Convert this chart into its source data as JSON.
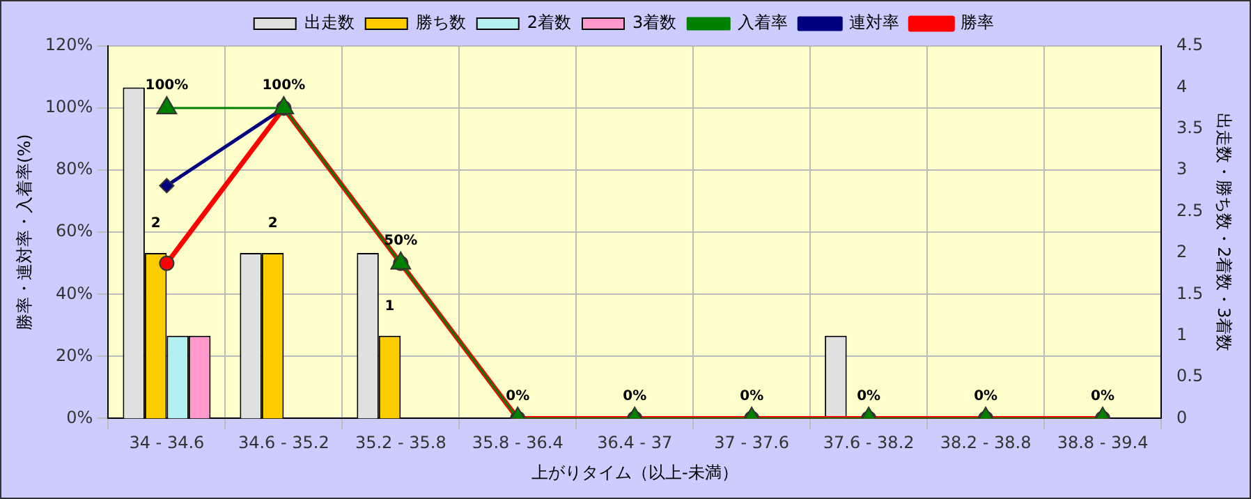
{
  "chart_data": {
    "type": "bar",
    "xlabel": "上がりタイム（以上-未満）",
    "ylabel": "勝率・連対率・入着率(%)",
    "y2label": "出走数・勝ち数・2着数・3着数",
    "categories": [
      "34 - 34.6",
      "34.6 - 35.2",
      "35.2 - 35.8",
      "35.8 - 36.4",
      "36.4 - 37",
      "37 - 37.6",
      "37.6 - 38.2",
      "38.2 - 38.8",
      "38.8 - 39.4"
    ],
    "series": [
      {
        "name": "出走数",
        "axis": "y2",
        "color": "#e0e0e0",
        "values": [
          4,
          2,
          2,
          0,
          0,
          0,
          1,
          0,
          0
        ]
      },
      {
        "name": "勝ち数",
        "axis": "y2",
        "color": "#ffcc00",
        "values": [
          2,
          2,
          1,
          0,
          0,
          0,
          0,
          0,
          0
        ],
        "value_labels": [
          "2",
          "2",
          "1",
          null,
          null,
          null,
          null,
          null,
          null
        ]
      },
      {
        "name": "2着数",
        "axis": "y2",
        "color": "#b3f0f0",
        "values": [
          1,
          0,
          0,
          0,
          0,
          0,
          0,
          0,
          0
        ]
      },
      {
        "name": "3着数",
        "axis": "y2",
        "color": "#ff99cc",
        "values": [
          1,
          0,
          0,
          0,
          0,
          0,
          0,
          0,
          0
        ]
      },
      {
        "name": "入着率",
        "type": "line",
        "color": "#008000",
        "marker": "triangle",
        "values": [
          100,
          100,
          50,
          0,
          0,
          0,
          0,
          0,
          0
        ],
        "value_labels": [
          "100%",
          "100%",
          "50%",
          "0%",
          "0%",
          "0%",
          "0%",
          "0%",
          "0%"
        ]
      },
      {
        "name": "連対率",
        "type": "line",
        "color": "#000080",
        "marker": "diamond",
        "values": [
          75,
          100,
          null,
          null,
          null,
          null,
          null,
          null,
          null
        ]
      },
      {
        "name": "勝率",
        "type": "line",
        "color": "#ff0000",
        "marker": "circle",
        "values": [
          50,
          100,
          50,
          0,
          0,
          0,
          0,
          0,
          0
        ]
      }
    ],
    "ylim": [
      0,
      120
    ],
    "yticks": [
      {
        "value": 0,
        "label": "0%"
      },
      {
        "value": 20,
        "label": "20%"
      },
      {
        "value": 40,
        "label": "40%"
      },
      {
        "value": 60,
        "label": "60%"
      },
      {
        "value": 80,
        "label": "80%"
      },
      {
        "value": 100,
        "label": "100%"
      },
      {
        "value": 120,
        "label": "120%"
      }
    ],
    "y2lim": [
      0,
      4.5
    ],
    "y2ticks": [
      0,
      0.5,
      1,
      1.5,
      2,
      2.5,
      3,
      3.5,
      4,
      4.5
    ],
    "grid": true,
    "legend": "top"
  }
}
